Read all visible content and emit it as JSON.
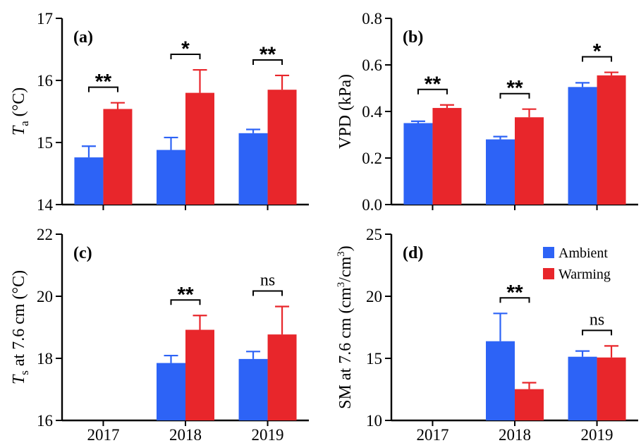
{
  "colors": {
    "ambient": "#2D63F6",
    "warming": "#E8262B"
  },
  "legend": {
    "position": "top-right",
    "entries": [
      "Ambient",
      "Warming"
    ]
  },
  "chart_data": [
    {
      "panel": "(a)",
      "type": "bar",
      "categories": [
        "2017",
        "2018",
        "2019"
      ],
      "ylabel_main": "T",
      "ylabel_sub": "a",
      "ylabel_rest": " (°C)",
      "ylim": [
        14,
        17
      ],
      "yticks": [
        14,
        15,
        16,
        17
      ],
      "show_xticklabels": false,
      "series": [
        {
          "name": "Ambient",
          "values": [
            14.76,
            14.88,
            15.15
          ],
          "errors": [
            0.18,
            0.2,
            0.06
          ]
        },
        {
          "name": "Warming",
          "values": [
            15.54,
            15.8,
            15.85
          ],
          "errors": [
            0.1,
            0.37,
            0.23
          ]
        }
      ],
      "significance": [
        "**",
        "*",
        "**"
      ]
    },
    {
      "panel": "(b)",
      "type": "bar",
      "categories": [
        "2017",
        "2018",
        "2019"
      ],
      "ylabel_main": "VPD (kPa)",
      "ylabel_sub": "",
      "ylabel_rest": "",
      "ylim": [
        0,
        0.8
      ],
      "yticks": [
        0.0,
        0.2,
        0.4,
        0.6,
        0.8
      ],
      "ytick_decimals": 1,
      "show_xticklabels": false,
      "series": [
        {
          "name": "Ambient",
          "values": [
            0.35,
            0.28,
            0.505
          ],
          "errors": [
            0.008,
            0.012,
            0.018
          ]
        },
        {
          "name": "Warming",
          "values": [
            0.415,
            0.375,
            0.555
          ],
          "errors": [
            0.013,
            0.035,
            0.013
          ]
        }
      ],
      "significance": [
        "**",
        "**",
        "*"
      ]
    },
    {
      "panel": "(c)",
      "type": "bar",
      "categories": [
        "2017",
        "2018",
        "2019"
      ],
      "ylabel_main": "T",
      "ylabel_sub": "s",
      "ylabel_rest": " at 7.6 cm (°C)",
      "ylim": [
        16,
        22
      ],
      "yticks": [
        16,
        18,
        20,
        22
      ],
      "show_xticklabels": true,
      "series": [
        {
          "name": "Ambient",
          "values": [
            null,
            17.85,
            17.98
          ],
          "errors": [
            null,
            0.24,
            0.24
          ]
        },
        {
          "name": "Warming",
          "values": [
            null,
            18.92,
            18.77
          ],
          "errors": [
            null,
            0.46,
            0.9
          ]
        }
      ],
      "significance": [
        "",
        "**",
        "ns"
      ]
    },
    {
      "panel": "(d)",
      "type": "bar",
      "categories": [
        "2017",
        "2018",
        "2019"
      ],
      "ylabel_main": "SM at 7.6 cm (cm³/cm³)",
      "ylabel_sub": "",
      "ylabel_rest": "",
      "ylim": [
        10,
        25
      ],
      "yticks": [
        10,
        15,
        20,
        25
      ],
      "show_xticklabels": true,
      "series": [
        {
          "name": "Ambient",
          "values": [
            null,
            16.38,
            15.13
          ],
          "errors": [
            null,
            2.24,
            0.46
          ]
        },
        {
          "name": "Warming",
          "values": [
            null,
            12.52,
            15.07
          ],
          "errors": [
            null,
            0.52,
            0.93
          ]
        }
      ],
      "significance": [
        "",
        "**",
        "ns"
      ],
      "has_legend": true
    }
  ]
}
